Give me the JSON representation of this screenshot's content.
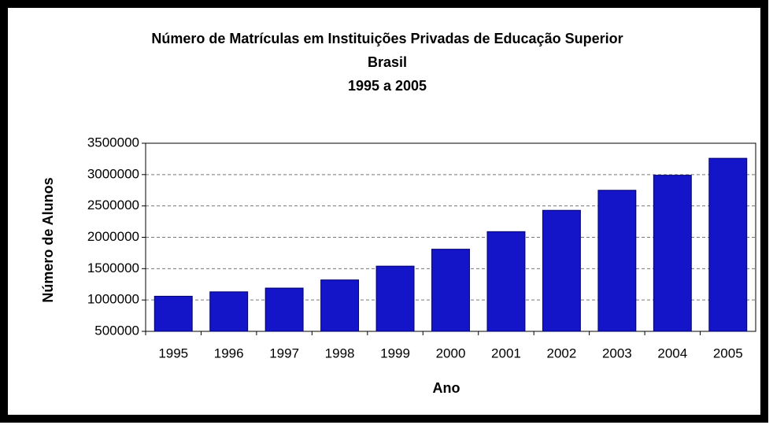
{
  "chart_data": {
    "type": "bar",
    "title": "Número de Matrículas em Instituições Privadas de Educação Superior",
    "subtitle": [
      "Brasil",
      "1995 a 2005"
    ],
    "x_label": "Ano",
    "y_label": "Número de Alunos",
    "categories": [
      "1995",
      "1996",
      "1997",
      "1998",
      "1999",
      "2000",
      "2001",
      "2002",
      "2003",
      "2004",
      "2005"
    ],
    "values": [
      1060000,
      1130000,
      1190000,
      1320000,
      1540000,
      1810000,
      2090000,
      2430000,
      2750000,
      2990000,
      3260000
    ],
    "color": "#1414c8",
    "ylim": [
      500000,
      3500000
    ],
    "yticks": [
      500000,
      1000000,
      1500000,
      2000000,
      2500000,
      3000000,
      3500000
    ],
    "grid": true
  }
}
